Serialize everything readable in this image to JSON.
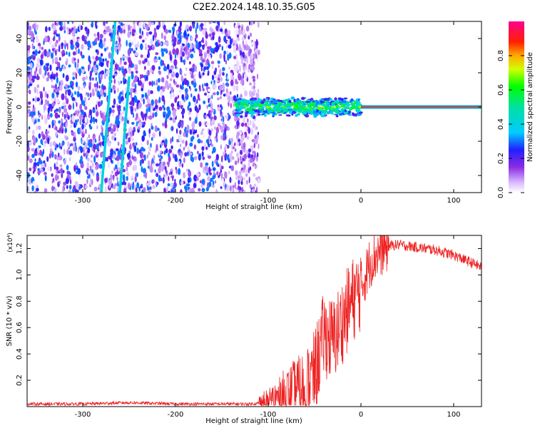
{
  "title": "C2E2.2024.148.10.35.G05",
  "colors": {
    "snr_line": "#ee2222",
    "background": "#ffffff"
  },
  "chart_data": [
    {
      "type": "heatmap",
      "xlabel": "Height of straight line (km)",
      "ylabel": "Frequency (Hz)",
      "xlim": [
        -360,
        130
      ],
      "ylim": [
        -50,
        50
      ],
      "xticks": [
        -300,
        -200,
        -100,
        0,
        100
      ],
      "yticks": [
        -40,
        -20,
        0,
        20,
        40
      ],
      "grid": false,
      "colorbar": {
        "label": "Normalized spectral amplitude",
        "ticks": [
          0.0,
          0.2,
          0.4,
          0.6,
          0.8
        ],
        "range": [
          0,
          1
        ],
        "colormap": "rainbow (white-purple-blue-cyan-green-yellow-orange-red-magenta)"
      },
      "features": [
        {
          "name": "noise",
          "x_range": [
            -360,
            -120
          ],
          "freq_range": [
            -50,
            50
          ],
          "amplitude": 0.15
        },
        {
          "name": "diagonal trace",
          "x_from": -280,
          "x_to": -265,
          "freq_from": -50,
          "freq_to": 50,
          "amplitude": 0.35
        },
        {
          "name": "signal band",
          "x_range": [
            -135,
            0
          ],
          "freq_center": 0,
          "freq_width": 6,
          "amplitude": 0.55
        },
        {
          "name": "carrier line",
          "x_range": [
            0,
            130
          ],
          "freq_center": 0,
          "freq_width": 2,
          "amplitude": 0.95
        }
      ]
    },
    {
      "type": "line",
      "xlabel": "Height of straight line (km)",
      "ylabel": "SNR (10 * v/v)",
      "yscale_label": "(x10⁴)",
      "xlim": [
        -360,
        130
      ],
      "ylim": [
        0,
        1.3
      ],
      "xticks": [
        -300,
        -200,
        -100,
        0,
        100
      ],
      "yticks": [
        0.2,
        0.4,
        0.6,
        0.8,
        1.0,
        1.2
      ],
      "grid": false,
      "series": [
        {
          "x": [
            -360,
            -300,
            -250,
            -200,
            -150,
            -120,
            -100,
            -80,
            -60,
            -50,
            -40,
            -30,
            -20,
            -10,
            0,
            10,
            20,
            30,
            40,
            50,
            60,
            80,
            100,
            120,
            130
          ],
          "y": [
            0.02,
            0.02,
            0.03,
            0.02,
            0.02,
            0.02,
            0.03,
            0.1,
            0.15,
            0.25,
            0.55,
            0.5,
            0.65,
            0.8,
            0.9,
            1.1,
            1.18,
            1.22,
            1.23,
            1.22,
            1.21,
            1.19,
            1.15,
            1.09,
            1.06
          ]
        }
      ]
    }
  ]
}
